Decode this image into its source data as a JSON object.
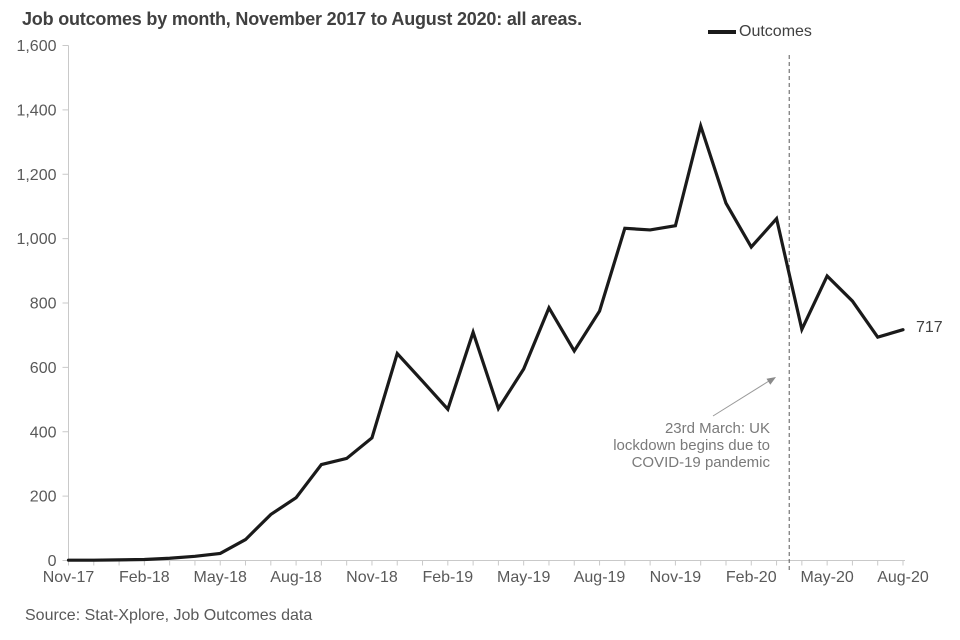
{
  "title": "Job outcomes by month, November 2017 to August 2020: all areas.",
  "legend": {
    "series_label": "Outcomes"
  },
  "source": "Source: Stat-Xplore, Job Outcomes data",
  "end_label": "717",
  "annotation": {
    "lines": [
      "23rd March: UK",
      "lockdown begins due to",
      "COVID-19 pandemic"
    ]
  },
  "colors": {
    "series_line": "#1a1a1a",
    "title_text": "#404040",
    "axis_text": "#595959",
    "axis_line": "#c9c9c9",
    "annotation_text": "#7a7a7a",
    "lockdown_dashed_line": "#595959",
    "arrow": "#9a9a9a"
  },
  "chart_data": {
    "type": "line",
    "title": "Job outcomes by month, November 2017 to August 2020: all areas.",
    "x": [
      "Nov-17",
      "Dec-17",
      "Jan-18",
      "Feb-18",
      "Mar-18",
      "Apr-18",
      "May-18",
      "Jun-18",
      "Jul-18",
      "Aug-18",
      "Sep-18",
      "Oct-18",
      "Nov-18",
      "Dec-18",
      "Jan-19",
      "Feb-19",
      "Mar-19",
      "Apr-19",
      "May-19",
      "Jun-19",
      "Jul-19",
      "Aug-19",
      "Sep-19",
      "Oct-19",
      "Nov-19",
      "Dec-19",
      "Jan-20",
      "Feb-20",
      "Mar-20",
      "Apr-20",
      "May-20",
      "Jun-20",
      "Jul-20",
      "Aug-20"
    ],
    "series": [
      {
        "name": "Outcomes",
        "values": [
          1,
          1,
          2,
          3,
          7,
          13,
          22,
          65,
          143,
          195,
          298,
          317,
          381,
          643,
          557,
          470,
          709,
          472,
          595,
          785,
          651,
          775,
          1032,
          1027,
          1040,
          1350,
          1110,
          974,
          1062,
          718,
          884,
          806,
          694,
          717
        ]
      }
    ],
    "x_tick_label_every": 3,
    "ylim": [
      0,
      1600
    ],
    "ytick_step": 200,
    "ytick_labels": [
      "0",
      "200",
      "400",
      "600",
      "800",
      "1,000",
      "1,200",
      "1,400",
      "1,600"
    ],
    "grid": false,
    "legend_position": "top-right",
    "annotations": {
      "vline_month_index": 28.5,
      "vline_label": "23rd March: UK lockdown begins due to COVID-19 pandemic",
      "last_point_label": "717"
    }
  }
}
